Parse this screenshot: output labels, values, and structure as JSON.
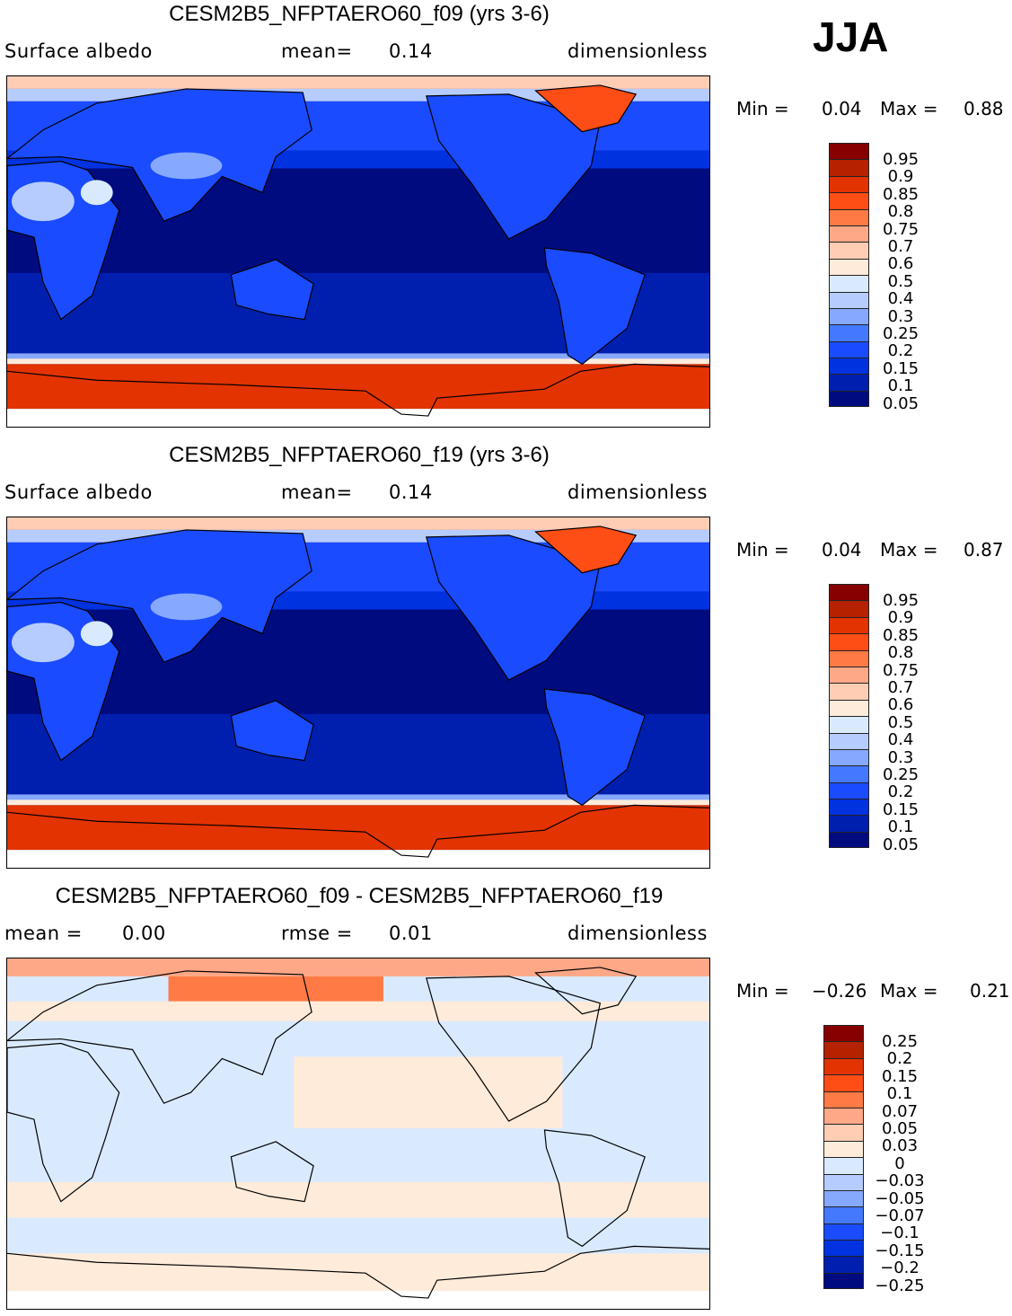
{
  "season": "JJA",
  "chart_data": {
    "type": "heatmap",
    "panels": [
      {
        "title": "CESM2B5_NFPTAERO60_f09 (yrs 3-6)",
        "left_label": "Surface albedo",
        "stat_label": "mean=",
        "stat_value": "0.14",
        "units": "dimensionless",
        "min_label": "Min =",
        "min": "0.04",
        "max_label": "Max =",
        "max": "0.88",
        "style": "abs",
        "levels": [
          "0.95",
          "0.9",
          "0.85",
          "0.8",
          "0.75",
          "0.7",
          "0.6",
          "0.5",
          "0.4",
          "0.3",
          "0.25",
          "0.2",
          "0.15",
          "0.1",
          "0.05"
        ]
      },
      {
        "title": "CESM2B5_NFPTAERO60_f19 (yrs 3-6)",
        "left_label": "Surface albedo",
        "stat_label": "mean=",
        "stat_value": "0.14",
        "units": "dimensionless",
        "min_label": "Min =",
        "min": "0.04",
        "max_label": "Max =",
        "max": "0.87",
        "style": "abs",
        "levels": [
          "0.95",
          "0.9",
          "0.85",
          "0.8",
          "0.75",
          "0.7",
          "0.6",
          "0.5",
          "0.4",
          "0.3",
          "0.25",
          "0.2",
          "0.15",
          "0.1",
          "0.05"
        ]
      },
      {
        "title": "CESM2B5_NFPTAERO60_f09 - CESM2B5_NFPTAERO60_f19",
        "left_label": "mean =",
        "left_value": "0.00",
        "stat_label": "rmse =",
        "stat_value": "0.01",
        "units": "dimensionless",
        "min_label": "Min =",
        "min": "−0.26",
        "max_label": "Max =",
        "max": "0.21",
        "style": "diff",
        "levels": [
          "0.25",
          "0.2",
          "0.15",
          "0.1",
          "0.07",
          "0.05",
          "0.03",
          "0",
          "−0.03",
          "−0.05",
          "−0.07",
          "−0.1",
          "−0.15",
          "−0.2",
          "−0.25"
        ]
      }
    ],
    "colors": [
      "#870000",
      "#B52200",
      "#E23300",
      "#FF4D16",
      "#FF7A45",
      "#FFA888",
      "#FFCCB4",
      "#FFEBDA",
      "#D9EAFF",
      "#B6CCFF",
      "#86A9FF",
      "#4479FF",
      "#1A4BFF",
      "#0032E0",
      "#001FAE",
      "#000B80"
    ]
  }
}
